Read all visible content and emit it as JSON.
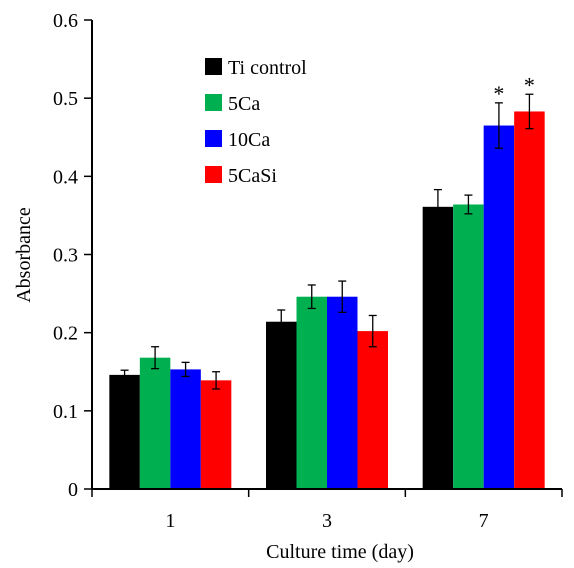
{
  "chart_data": {
    "type": "bar",
    "title": "",
    "xlabel": "Culture time (day)",
    "ylabel": "Absorbance",
    "categories": [
      "1",
      "3",
      "7"
    ],
    "ylim": [
      0,
      0.6
    ],
    "yticks": [
      "0",
      "0.1",
      "0.2",
      "0.3",
      "0.4",
      "0.5",
      "0.6"
    ],
    "grid": false,
    "legend_position": "top-left",
    "series": [
      {
        "name": "Ti control",
        "color": "#000000",
        "values": [
          0.146,
          0.214,
          0.361
        ],
        "errors": [
          0.006,
          0.015,
          0.022
        ]
      },
      {
        "name": "5Ca",
        "color": "#00b050",
        "values": [
          0.168,
          0.246,
          0.364
        ],
        "errors": [
          0.014,
          0.015,
          0.012
        ]
      },
      {
        "name": "10Ca",
        "color": "#0000ff",
        "values": [
          0.153,
          0.246,
          0.465
        ],
        "errors": [
          0.009,
          0.02,
          0.029
        ]
      },
      {
        "name": "5CaSi",
        "color": "#ff0000",
        "values": [
          0.139,
          0.202,
          0.483
        ],
        "errors": [
          0.011,
          0.02,
          0.022
        ]
      }
    ],
    "annotations": [
      {
        "text": "*",
        "category": "7",
        "series": "10Ca"
      },
      {
        "text": "*",
        "category": "7",
        "series": "5CaSi"
      }
    ]
  }
}
